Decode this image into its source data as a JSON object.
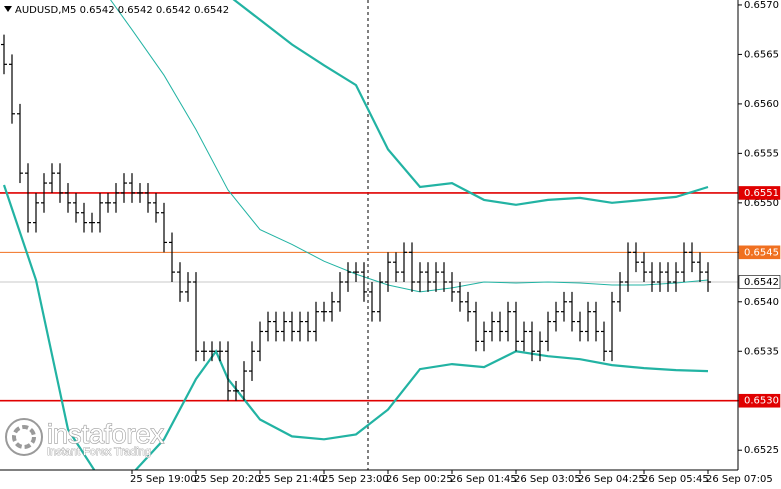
{
  "chart_data": {
    "type": "ohlc",
    "title": "AUDUSD,M5  0.6542 0.6542 0.6542 0.6542",
    "bar_color": "#000000",
    "ylim": [
      0.6523,
      0.65705
    ],
    "xlim": [
      -0.5,
      91.75
    ],
    "yticks": [
      {
        "value": 0.657,
        "label": "0.6570"
      },
      0.6565,
      {
        "value": 0.656,
        "label": "0.6560"
      },
      0.6555,
      {
        "value": 0.655,
        "label": "0.6550"
      },
      0.6545,
      {
        "value": 0.654,
        "label": "0.6540"
      },
      0.6535,
      {
        "value": 0.653,
        "label": "0.6530"
      },
      0.6525
    ],
    "categories": [
      null,
      null,
      null,
      null,
      null,
      null,
      null,
      null,
      null,
      null,
      null,
      null,
      null,
      null,
      null,
      null,
      "25 Sep 19:00",
      null,
      null,
      null,
      null,
      null,
      null,
      null,
      "25 Sep 20:20",
      null,
      null,
      null,
      null,
      null,
      null,
      null,
      "25 Sep 21:40",
      null,
      null,
      null,
      null,
      null,
      null,
      null,
      "25 Sep 23:00",
      null,
      null,
      null,
      null,
      null,
      null,
      null,
      "26 Sep 00:25",
      null,
      null,
      null,
      null,
      null,
      null,
      null,
      "26 Sep 01:45",
      null,
      null,
      null,
      null,
      null,
      null,
      null,
      "26 Sep 03:05",
      null,
      null,
      null,
      null,
      null,
      null,
      null,
      "26 Sep 04:25",
      null,
      null,
      null,
      null,
      null,
      null,
      null,
      "26 Sep 05:45",
      null,
      null,
      null,
      null,
      null,
      null,
      null,
      "26 Sep 07:05"
    ],
    "bars": [
      [
        0.6566,
        0.6567,
        0.6563,
        0.6564
      ],
      [
        0.6564,
        0.6565,
        0.6558,
        0.6559
      ],
      [
        0.6559,
        0.656,
        0.6552,
        0.6553
      ],
      [
        0.6553,
        0.6554,
        0.6547,
        0.6548
      ],
      [
        0.6548,
        0.6551,
        0.6547,
        0.655
      ],
      [
        0.655,
        0.6553,
        0.6549,
        0.6552
      ],
      [
        0.6552,
        0.6554,
        0.6551,
        0.6553
      ],
      [
        0.6553,
        0.6554,
        0.655,
        0.6551
      ],
      [
        0.6551,
        0.6552,
        0.6549,
        0.655
      ],
      [
        0.655,
        0.6551,
        0.6548,
        0.6549
      ],
      [
        0.6549,
        0.655,
        0.6547,
        0.6548
      ],
      [
        0.6548,
        0.6549,
        0.6547,
        0.6548
      ],
      [
        0.6548,
        0.6551,
        0.6547,
        0.655
      ],
      [
        0.655,
        0.6551,
        0.6549,
        0.655
      ],
      [
        0.655,
        0.6552,
        0.6549,
        0.6551
      ],
      [
        0.6551,
        0.6553,
        0.655,
        0.6552
      ],
      [
        0.6552,
        0.6553,
        0.655,
        0.6551
      ],
      [
        0.6551,
        0.6552,
        0.655,
        0.6551
      ],
      [
        0.6551,
        0.6552,
        0.6549,
        0.655
      ],
      [
        0.655,
        0.6551,
        0.6548,
        0.6549
      ],
      [
        0.6549,
        0.655,
        0.6545,
        0.6546
      ],
      [
        0.6546,
        0.6547,
        0.6542,
        0.6543
      ],
      [
        0.6543,
        0.6544,
        0.654,
        0.6541
      ],
      [
        0.6541,
        0.6543,
        0.654,
        0.6542
      ],
      [
        0.6542,
        0.6543,
        0.6534,
        0.6535
      ],
      [
        0.6535,
        0.6536,
        0.6534,
        0.6535
      ],
      [
        0.6535,
        0.6536,
        0.6534,
        0.6535
      ],
      [
        0.6535,
        0.6536,
        0.6534,
        0.6535
      ],
      [
        0.6535,
        0.6536,
        0.653,
        0.6531
      ],
      [
        0.6531,
        0.6532,
        0.653,
        0.6531
      ],
      [
        0.6531,
        0.6534,
        0.653,
        0.6533
      ],
      [
        0.6533,
        0.6536,
        0.6532,
        0.6535
      ],
      [
        0.6535,
        0.6538,
        0.6534,
        0.6537
      ],
      [
        0.6537,
        0.6539,
        0.6536,
        0.6538
      ],
      [
        0.6538,
        0.6539,
        0.6536,
        0.6537
      ],
      [
        0.6537,
        0.6539,
        0.6536,
        0.6538
      ],
      [
        0.6538,
        0.6539,
        0.6536,
        0.6537
      ],
      [
        0.6537,
        0.6539,
        0.6536,
        0.6538
      ],
      [
        0.6538,
        0.6539,
        0.6536,
        0.6537
      ],
      [
        0.6537,
        0.654,
        0.6536,
        0.6539
      ],
      [
        0.6539,
        0.654,
        0.6538,
        0.6539
      ],
      [
        0.6539,
        0.6541,
        0.6538,
        0.654
      ],
      [
        0.654,
        0.6543,
        0.6539,
        0.6542
      ],
      [
        0.6542,
        0.6544,
        0.6541,
        0.6543
      ],
      [
        0.6543,
        0.6544,
        0.6542,
        0.6543
      ],
      [
        0.6543,
        0.6544,
        0.654,
        0.6541
      ],
      [
        0.6541,
        0.6542,
        0.6538,
        0.6539
      ],
      [
        0.6539,
        0.6543,
        0.6538,
        0.6542
      ],
      [
        0.6542,
        0.6545,
        0.6541,
        0.6544
      ],
      [
        0.6544,
        0.6545,
        0.6542,
        0.6543
      ],
      [
        0.6543,
        0.6546,
        0.6542,
        0.6545
      ],
      [
        0.6545,
        0.6546,
        0.6541,
        0.6542
      ],
      [
        0.6542,
        0.6544,
        0.6541,
        0.6543
      ],
      [
        0.6543,
        0.6544,
        0.6541,
        0.6542
      ],
      [
        0.6542,
        0.6544,
        0.6541,
        0.6543
      ],
      [
        0.6543,
        0.6544,
        0.6541,
        0.6542
      ],
      [
        0.6542,
        0.6543,
        0.654,
        0.6541
      ],
      [
        0.6541,
        0.6542,
        0.6539,
        0.654
      ],
      [
        0.654,
        0.6541,
        0.6538,
        0.6539
      ],
      [
        0.6539,
        0.654,
        0.6535,
        0.6536
      ],
      [
        0.6536,
        0.6538,
        0.6535,
        0.6537
      ],
      [
        0.6537,
        0.6539,
        0.6536,
        0.6538
      ],
      [
        0.6538,
        0.6539,
        0.6536,
        0.6537
      ],
      [
        0.6537,
        0.654,
        0.6536,
        0.6539
      ],
      [
        0.6539,
        0.654,
        0.6535,
        0.6536
      ],
      [
        0.6536,
        0.6538,
        0.6535,
        0.6537
      ],
      [
        0.6537,
        0.6538,
        0.6534,
        0.6535
      ],
      [
        0.6535,
        0.6537,
        0.6534,
        0.6536
      ],
      [
        0.6536,
        0.6539,
        0.6535,
        0.6538
      ],
      [
        0.6538,
        0.654,
        0.6537,
        0.6539
      ],
      [
        0.6539,
        0.6541,
        0.6538,
        0.654
      ],
      [
        0.654,
        0.6541,
        0.6537,
        0.6538
      ],
      [
        0.6538,
        0.6539,
        0.6536,
        0.6537
      ],
      [
        0.6537,
        0.654,
        0.6536,
        0.6539
      ],
      [
        0.6539,
        0.654,
        0.6536,
        0.6537
      ],
      [
        0.6537,
        0.6538,
        0.6534,
        0.6535
      ],
      [
        0.6535,
        0.6541,
        0.6534,
        0.654
      ],
      [
        0.654,
        0.6543,
        0.6539,
        0.6542
      ],
      [
        0.6542,
        0.6546,
        0.6541,
        0.6545
      ],
      [
        0.6545,
        0.6546,
        0.6543,
        0.6544
      ],
      [
        0.6544,
        0.6545,
        0.6542,
        0.6543
      ],
      [
        0.6543,
        0.6544,
        0.6541,
        0.6542
      ],
      [
        0.6542,
        0.6544,
        0.6541,
        0.6543
      ],
      [
        0.6543,
        0.6544,
        0.6541,
        0.6542
      ],
      [
        0.6542,
        0.6544,
        0.6541,
        0.6543
      ],
      [
        0.6543,
        0.6546,
        0.6542,
        0.6545
      ],
      [
        0.6545,
        0.6546,
        0.6543,
        0.6544
      ],
      [
        0.6544,
        0.6545,
        0.6542,
        0.6543
      ],
      [
        0.6543,
        0.6544,
        0.6541,
        0.6542
      ]
    ],
    "indicators": [
      {
        "color": "#22b3a3",
        "line_width": 2.2,
        "x": [
          0,
          4,
          8,
          12,
          16,
          20,
          24,
          28,
          32,
          36,
          40,
          44,
          48,
          52,
          56,
          60,
          64,
          68,
          72,
          76,
          80,
          84,
          88
        ],
        "values": [
          0.659,
          0.6588,
          0.6586,
          0.6584,
          0.6582,
          0.6579,
          0.6575,
          0.6571,
          0.65685,
          0.6566,
          0.65639,
          0.65619,
          0.65554,
          0.65516,
          0.6552,
          0.65503,
          0.65498,
          0.65503,
          0.65505,
          0.655,
          0.65503,
          0.65506,
          0.65516
        ]
      },
      {
        "color": "#22b3a3",
        "line_width": 1,
        "x": [
          0,
          4,
          8,
          12,
          16,
          20,
          24,
          28,
          32,
          36,
          40,
          44,
          48,
          52,
          56,
          60,
          64,
          68,
          72,
          76,
          80,
          84,
          88
        ],
        "values": [
          0.6585,
          0.6581,
          0.6577,
          0.6572,
          0.65675,
          0.65629,
          0.65574,
          0.65513,
          0.65473,
          0.65458,
          0.65441,
          0.65428,
          0.65417,
          0.6541,
          0.65414,
          0.6542,
          0.65419,
          0.6542,
          0.65419,
          0.65417,
          0.65417,
          0.65419,
          0.65422
        ]
      },
      {
        "color": "#22b3a3",
        "line_width": 2.2,
        "x": [
          0,
          4,
          8,
          12,
          16,
          20,
          24,
          26.5,
          28,
          32,
          36,
          40,
          44,
          48,
          52,
          56,
          60,
          64,
          68,
          72,
          76,
          80,
          84,
          88
        ],
        "values": [
          0.65518,
          0.65422,
          0.65271,
          0.65221,
          0.65226,
          0.65261,
          0.65322,
          0.6535,
          0.65322,
          0.65281,
          0.65264,
          0.65261,
          0.65266,
          0.65291,
          0.65332,
          0.65337,
          0.65334,
          0.6535,
          0.65345,
          0.65342,
          0.65336,
          0.65333,
          0.65331,
          0.6533
        ]
      }
    ],
    "levels": [
      {
        "value": 0.6551,
        "color": "#e00000",
        "box": "#e00000",
        "text_color": "#ffffff",
        "line_width": 1.6
      },
      {
        "value": 0.6545,
        "color": "#f07020",
        "box": "#f07020",
        "text_color": "#ffffff",
        "line_width": 1
      },
      {
        "value": 0.6542,
        "color": "#c8c8c8",
        "box": "#ffffff",
        "text_color": "#000000",
        "line_width": 1
      },
      {
        "value": 0.653,
        "label": "0.6530",
        "color": "#e00000",
        "box": "#e00000",
        "text_color": "#ffffff",
        "line_width": 1.6
      }
    ]
  },
  "logo": {
    "name": "instaforex",
    "tagline": "Instant Forex Trading"
  }
}
